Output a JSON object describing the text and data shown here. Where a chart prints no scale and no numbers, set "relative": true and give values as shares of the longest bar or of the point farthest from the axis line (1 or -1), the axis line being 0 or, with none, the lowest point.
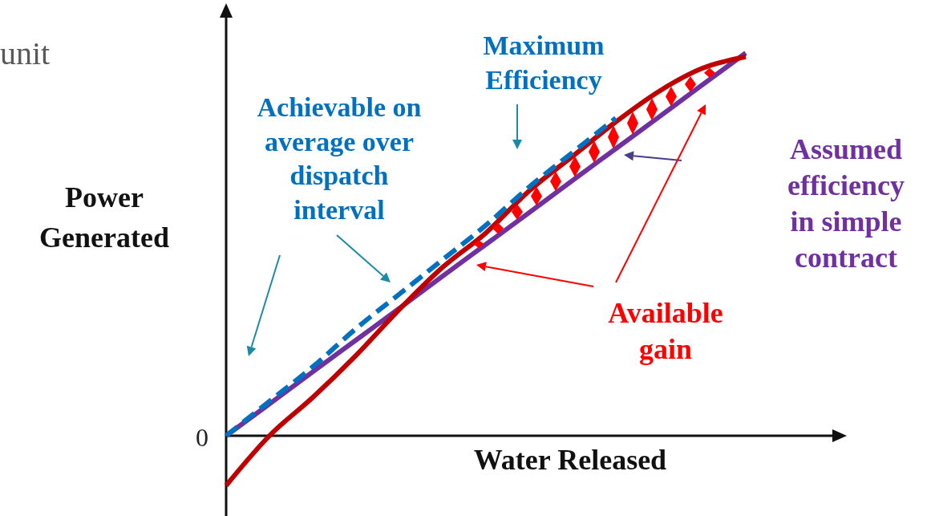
{
  "chart_data": {
    "type": "line",
    "relative": true,
    "xlabel": "Water Released",
    "ylabel": "Power Generated",
    "categories": [
      null,
      null,
      null,
      null,
      null,
      null,
      null,
      null,
      null,
      null,
      null,
      null,
      null,
      null,
      null
    ],
    "series": [
      {
        "color": "#7030a0",
        "values": [
          0,
          0.083,
          0.167,
          0.25,
          0.333,
          0.417,
          0.5,
          0.583,
          0.667,
          0.75,
          0.833,
          0.917,
          1.0,
          null,
          null
        ]
      },
      {
        "color": "#c00000",
        "values": [
          -0.13,
          0.0,
          0.1,
          0.21,
          0.33,
          0.44,
          0.53,
          0.64,
          0.73,
          0.82,
          0.9,
          0.96,
          0.99,
          null,
          null
        ]
      },
      {
        "color": "#0070c0",
        "line_style": "dashed",
        "values": [
          0,
          0.09,
          0.18,
          0.28,
          0.37,
          0.46,
          0.55,
          0.65,
          0.74,
          0.83,
          null,
          null,
          null,
          null,
          null
        ]
      }
    ],
    "annotations": [
      "unit",
      "0",
      "Maximum Efficiency",
      "Achievable on average over dispatch interval",
      "Assumed efficiency in simple contract",
      "Available gain"
    ]
  }
}
